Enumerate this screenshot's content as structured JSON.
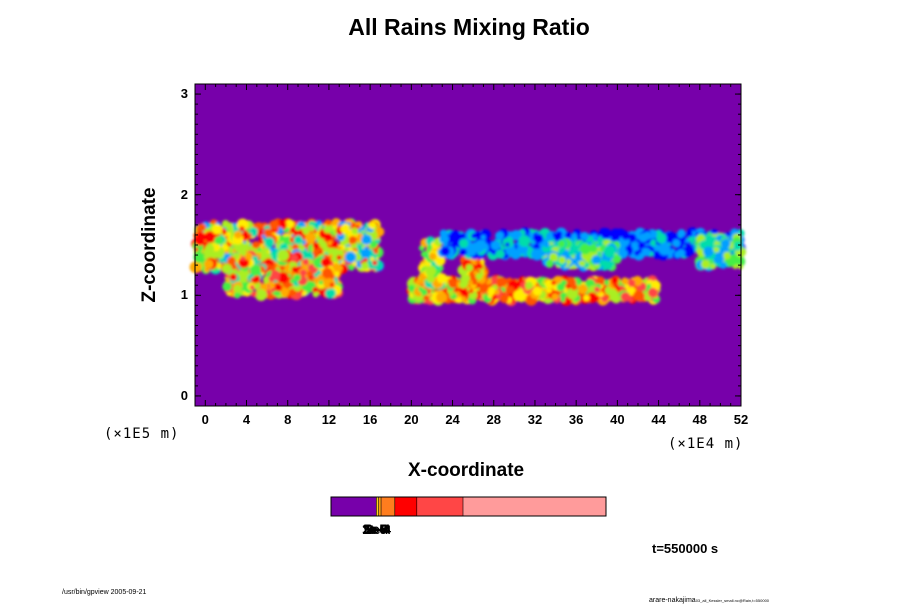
{
  "chart_data": {
    "type": "heatmap",
    "title": "All Rains Mixing Ratio",
    "xlabel": "X-coordinate",
    "ylabel": "Z-coordinate",
    "x_scale_label": "(×1E4 m)",
    "y_scale_label": "(×1E5 m)",
    "xlim": [
      -1,
      52
    ],
    "ylim": [
      -0.1,
      3.1
    ],
    "x_ticks": [
      "0",
      "4",
      "8",
      "12",
      "16",
      "20",
      "24",
      "28",
      "32",
      "36",
      "40",
      "44",
      "48",
      "52"
    ],
    "y_ticks": [
      "0",
      "1",
      "2",
      "3"
    ],
    "background_value_color": "#7700aa",
    "colorscale": [
      "#7700aa",
      "#0000ff",
      "#00a0ff",
      "#00ddaa",
      "#44ee44",
      "#aaee22",
      "#ffee00",
      "#ffaa00",
      "#ff5500",
      "#ff0000",
      "#ff4444",
      "#ff9999"
    ],
    "colorbar": {
      "segments": [
        {
          "color": "#7700aa",
          "width": 0.165
        },
        {
          "color": "#ffd21e",
          "width": 0.008
        },
        {
          "color": "#ffa014",
          "width": 0.009
        },
        {
          "color": "#ff7d1e",
          "width": 0.05
        },
        {
          "color": "#ff0000",
          "width": 0.08
        },
        {
          "color": "#ff4646",
          "width": 0.168
        },
        {
          "color": "#ff9b9b",
          "width": 0.52
        }
      ],
      "tick_labels": [
        "1e-5",
        "2e-5",
        "5e-5",
        "1e-4",
        "2e-4",
        "5e-4"
      ]
    },
    "time_label": "t=550000 s",
    "footer_left": "/usr/bin/gpview 2005-09-21",
    "footer_right_main": "arare-nakajima",
    "footer_right_small": "03_all_Kessler_small.nc@Rain,t=550000"
  }
}
